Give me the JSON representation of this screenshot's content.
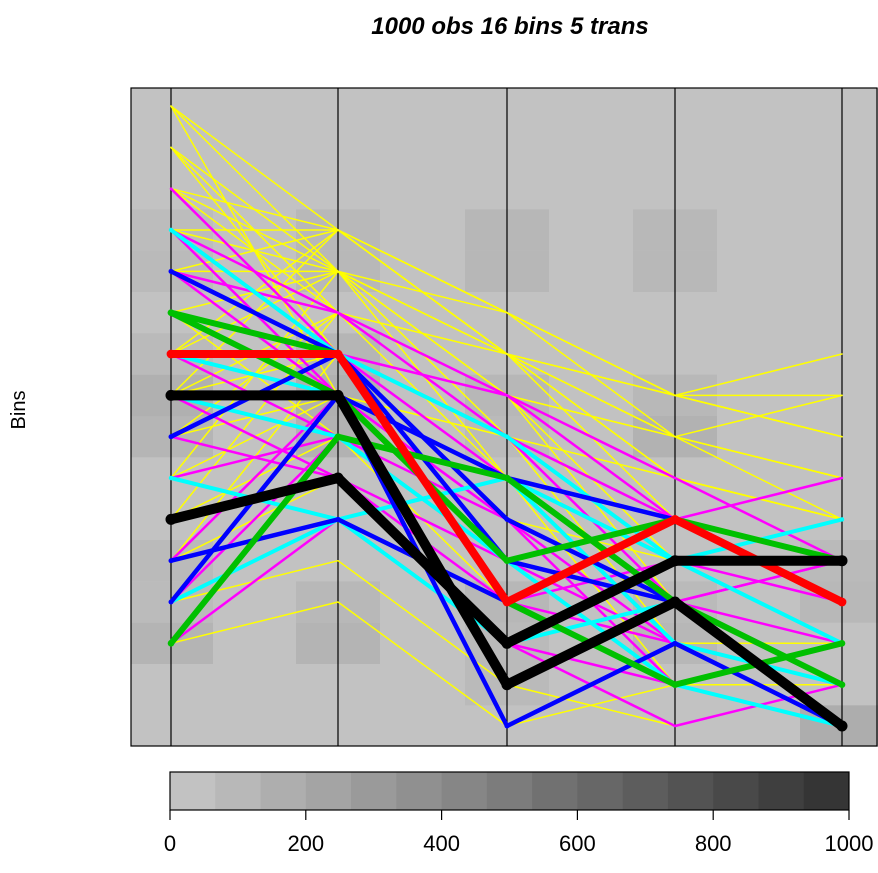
{
  "chart_data": {
    "type": "parallel-coordinates",
    "title": "1000 obs 16 bins 5 trans",
    "ylabel": "Bins",
    "xlabel": "",
    "bins": 16,
    "axes": 5,
    "grid": false,
    "axis_colors": {
      "axis": "#000000",
      "background": "#c2c2c2"
    },
    "heatmap": [
      [
        0.0,
        0.0,
        0.0,
        0.0,
        0.0
      ],
      [
        0.0,
        0.0,
        0.0,
        0.0,
        0.0
      ],
      [
        0.0,
        0.0,
        0.0,
        0.0,
        0.0
      ],
      [
        0.0,
        0.0,
        0.0,
        0.0,
        0.0
      ],
      [
        0.0,
        0.0,
        0.0,
        0.0,
        0.0
      ],
      [
        0.0,
        0.0,
        0.0,
        0.0,
        0.0
      ],
      [
        0.0,
        0.0,
        0.0,
        0.0,
        0.0
      ],
      [
        0.0,
        0.0,
        0.0,
        0.0,
        0.0
      ],
      [
        0.0,
        0.0,
        0.0,
        0.0,
        0.0
      ],
      [
        0.0,
        0.0,
        0.0,
        0.0,
        0.0
      ],
      [
        0.0,
        0.0,
        0.0,
        0.0,
        0.0
      ],
      [
        0.0,
        0.0,
        0.0,
        0.0,
        0.0
      ],
      [
        0.0,
        0.0,
        0.0,
        0.0,
        0.0
      ],
      [
        0.0,
        0.0,
        0.0,
        0.0,
        0.0
      ],
      [
        0.0,
        0.0,
        0.0,
        0.0,
        0.0
      ],
      [
        0.0,
        0.0,
        0.0,
        0.0,
        0.0
      ]
    ],
    "heatmap_cells": [
      {
        "axis": 0,
        "bin": 11,
        "count": 60
      },
      {
        "axis": 0,
        "bin": 12,
        "count": 40
      },
      {
        "axis": 0,
        "bin": 7,
        "count": 90
      },
      {
        "axis": 0,
        "bin": 8,
        "count": 130
      },
      {
        "axis": 0,
        "bin": 9,
        "count": 60
      },
      {
        "axis": 0,
        "bin": 3,
        "count": 50
      },
      {
        "axis": 0,
        "bin": 4,
        "count": 60
      },
      {
        "axis": 0,
        "bin": 2,
        "count": 100
      },
      {
        "axis": 1,
        "bin": 11,
        "count": 70
      },
      {
        "axis": 1,
        "bin": 12,
        "count": 70
      },
      {
        "axis": 1,
        "bin": 7,
        "count": 110
      },
      {
        "axis": 1,
        "bin": 8,
        "count": 130
      },
      {
        "axis": 1,
        "bin": 9,
        "count": 90
      },
      {
        "axis": 1,
        "bin": 2,
        "count": 100
      },
      {
        "axis": 1,
        "bin": 3,
        "count": 70
      },
      {
        "axis": 2,
        "bin": 11,
        "count": 80
      },
      {
        "axis": 2,
        "bin": 12,
        "count": 80
      },
      {
        "axis": 2,
        "bin": 7,
        "count": 60
      },
      {
        "axis": 2,
        "bin": 8,
        "count": 80
      },
      {
        "axis": 2,
        "bin": 2,
        "count": 60
      },
      {
        "axis": 2,
        "bin": 3,
        "count": 80
      },
      {
        "axis": 2,
        "bin": 1,
        "count": 60
      },
      {
        "axis": 3,
        "bin": 11,
        "count": 70
      },
      {
        "axis": 3,
        "bin": 12,
        "count": 70
      },
      {
        "axis": 3,
        "bin": 7,
        "count": 110
      },
      {
        "axis": 3,
        "bin": 8,
        "count": 70
      },
      {
        "axis": 3,
        "bin": 2,
        "count": 80
      },
      {
        "axis": 3,
        "bin": 3,
        "count": 60
      },
      {
        "axis": 4,
        "bin": 4,
        "count": 60
      },
      {
        "axis": 4,
        "bin": 3,
        "count": 70
      },
      {
        "axis": 4,
        "bin": 0,
        "count": 150
      }
    ],
    "series": [
      {
        "color": "#ffff00",
        "width": 1.5,
        "paths": [
          [
            15,
            12,
            10,
            8,
            7
          ],
          [
            14,
            11,
            9,
            6,
            5
          ],
          [
            15,
            8,
            7,
            4,
            3
          ],
          [
            14,
            9,
            8,
            3,
            2
          ],
          [
            13,
            12,
            9,
            7,
            5
          ],
          [
            13,
            10,
            6,
            5,
            4
          ],
          [
            12,
            11,
            9,
            6,
            4
          ],
          [
            12,
            9,
            7,
            4,
            2
          ],
          [
            11,
            12,
            10,
            8,
            9
          ],
          [
            11,
            8,
            6,
            3,
            1
          ],
          [
            10,
            9,
            8,
            7,
            6
          ],
          [
            10,
            7,
            5,
            3,
            1
          ],
          [
            9,
            11,
            10,
            7,
            8
          ],
          [
            9,
            8,
            7,
            5,
            3
          ],
          [
            8,
            12,
            9,
            8,
            7
          ],
          [
            8,
            10,
            7,
            6,
            5
          ],
          [
            7,
            9,
            6,
            3,
            2
          ],
          [
            7,
            8,
            5,
            4,
            3
          ],
          [
            6,
            11,
            9,
            8,
            7
          ],
          [
            6,
            7,
            4,
            2,
            1
          ],
          [
            5,
            10,
            8,
            6,
            4
          ],
          [
            5,
            6,
            3,
            1,
            0
          ],
          [
            4,
            9,
            7,
            5,
            3
          ],
          [
            4,
            5,
            2,
            1,
            0
          ],
          [
            3,
            8,
            6,
            4,
            2
          ],
          [
            3,
            4,
            1,
            0,
            1
          ],
          [
            2,
            7,
            5,
            3,
            2
          ],
          [
            2,
            3,
            0,
            1,
            0
          ],
          [
            11,
            11,
            8,
            7,
            6
          ],
          [
            9,
            12,
            10,
            8,
            8
          ],
          [
            12,
            12,
            9,
            5,
            4
          ],
          [
            13,
            11,
            7,
            3,
            2
          ],
          [
            15,
            11,
            6,
            2,
            1
          ],
          [
            14,
            10,
            9,
            7,
            6
          ],
          [
            10,
            11,
            8,
            6,
            5
          ],
          [
            8,
            9,
            8,
            4,
            3
          ],
          [
            7,
            10,
            7,
            2,
            2
          ],
          [
            6,
            8,
            6,
            1,
            1
          ],
          [
            5,
            7,
            3,
            2,
            0
          ],
          [
            4,
            6,
            4,
            1,
            1
          ]
        ]
      },
      {
        "color": "#ff00ff",
        "width": 2.5,
        "paths": [
          [
            13,
            9,
            7,
            3,
            1
          ],
          [
            12,
            10,
            8,
            5,
            3
          ],
          [
            11,
            8,
            6,
            2,
            1
          ],
          [
            10,
            9,
            7,
            4,
            2
          ],
          [
            9,
            7,
            4,
            2,
            1
          ],
          [
            8,
            8,
            5,
            3,
            4
          ],
          [
            7,
            9,
            8,
            6,
            4
          ],
          [
            6,
            5,
            3,
            2,
            0
          ],
          [
            5,
            6,
            4,
            3,
            2
          ],
          [
            4,
            8,
            6,
            4,
            5
          ],
          [
            3,
            7,
            5,
            1,
            0
          ],
          [
            2,
            5,
            3,
            4,
            3
          ],
          [
            12,
            8,
            4,
            1,
            0
          ],
          [
            11,
            10,
            7,
            5,
            6
          ],
          [
            9,
            9,
            6,
            2,
            1
          ],
          [
            7,
            6,
            2,
            1,
            2
          ],
          [
            6,
            7,
            4,
            3,
            4
          ],
          [
            8,
            6,
            3,
            1,
            0
          ],
          [
            10,
            8,
            5,
            2,
            1
          ],
          [
            4,
            5,
            2,
            0,
            1
          ]
        ]
      },
      {
        "color": "#00ffff",
        "width": 4,
        "paths": [
          [
            12,
            9,
            7,
            4,
            2
          ],
          [
            9,
            8,
            1,
            3,
            0
          ],
          [
            8,
            7,
            4,
            1,
            0
          ],
          [
            6,
            5,
            2,
            3,
            0
          ],
          [
            10,
            8,
            6,
            4,
            5
          ],
          [
            3,
            5,
            6,
            2,
            1
          ]
        ]
      },
      {
        "color": "#0000ff",
        "width": 4.5,
        "paths": [
          [
            11,
            9,
            5,
            3,
            1
          ],
          [
            8,
            8,
            0,
            2,
            0
          ],
          [
            3,
            8,
            6,
            5,
            4
          ],
          [
            4,
            5,
            3,
            1,
            2
          ],
          [
            7,
            9,
            4,
            3,
            1
          ]
        ]
      },
      {
        "color": "#00c000",
        "width": 6,
        "paths": [
          [
            10,
            8,
            4,
            5,
            4
          ],
          [
            2,
            7,
            6,
            3,
            1
          ],
          [
            10,
            9,
            3,
            1,
            2
          ]
        ]
      },
      {
        "color": "#ff0000",
        "width": 8,
        "paths": [
          [
            9,
            9,
            3,
            5,
            3
          ]
        ]
      },
      {
        "color": "#000000",
        "width": 10,
        "paths": [
          [
            5,
            6,
            2,
            4,
            4
          ],
          [
            8,
            8,
            1,
            3,
            0
          ]
        ]
      }
    ],
    "colorbar": {
      "ticks": [
        "0",
        "200",
        "400",
        "600",
        "800",
        "1000"
      ],
      "min": 0,
      "max": 1000,
      "steps": 15,
      "low_color": "#c2c2c2",
      "high_color": "#353535"
    }
  }
}
